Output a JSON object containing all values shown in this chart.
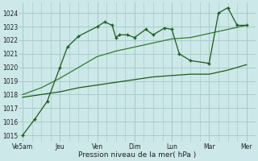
{
  "background_color": "#cce8e8",
  "grid_color": "#aacccc",
  "line_color_dark": "#1a5c1a",
  "line_color_mid": "#2e7d2e",
  "title": "Pression niveau de la mer( hPa )",
  "x_labels": [
    "Ve5am",
    "Jeu",
    "Ven",
    "Dim",
    "Lun",
    "Mar",
    "Mer"
  ],
  "x_positions": [
    0,
    1,
    2,
    3,
    4,
    5,
    6
  ],
  "ylim": [
    1014.5,
    1024.8
  ],
  "yticks": [
    1015,
    1016,
    1017,
    1018,
    1019,
    1020,
    1021,
    1022,
    1023,
    1024
  ],
  "series_main": {
    "x": [
      0.0,
      0.33,
      0.66,
      1.0,
      1.2,
      1.5,
      2.0,
      2.2,
      2.4,
      2.5,
      2.6,
      2.8,
      3.0,
      3.3,
      3.5,
      3.8,
      4.0,
      4.2,
      4.5,
      5.0,
      5.25,
      5.5,
      5.75,
      6.0
    ],
    "y": [
      1015.0,
      1016.2,
      1017.5,
      1020.0,
      1021.5,
      1022.3,
      1023.0,
      1023.35,
      1023.1,
      1022.2,
      1022.4,
      1022.4,
      1022.2,
      1022.8,
      1022.4,
      1022.9,
      1022.8,
      1021.0,
      1020.5,
      1020.3,
      1024.0,
      1024.4,
      1023.1,
      1023.1
    ]
  },
  "series_smooth1": {
    "x": [
      0.0,
      0.5,
      1.0,
      1.5,
      2.0,
      2.5,
      3.0,
      3.5,
      4.0,
      4.5,
      5.0,
      5.5,
      6.0
    ],
    "y": [
      1018.0,
      1018.5,
      1019.2,
      1020.0,
      1020.8,
      1021.2,
      1021.5,
      1021.8,
      1022.1,
      1022.2,
      1022.5,
      1022.8,
      1023.1
    ]
  },
  "series_smooth2": {
    "x": [
      0.0,
      0.5,
      1.0,
      1.5,
      2.0,
      2.5,
      3.0,
      3.5,
      4.0,
      4.5,
      5.0,
      5.5,
      6.0
    ],
    "y": [
      1017.8,
      1018.0,
      1018.2,
      1018.5,
      1018.7,
      1018.9,
      1019.1,
      1019.3,
      1019.4,
      1019.5,
      1019.5,
      1019.8,
      1020.2
    ]
  }
}
